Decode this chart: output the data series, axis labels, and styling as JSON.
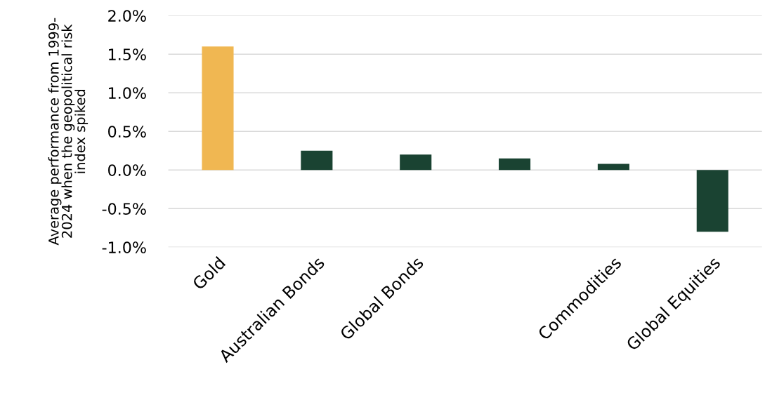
{
  "chart_data": {
    "type": "bar",
    "ylabel": "Average performance from 1999-\n2024 when the geopolitical risk\nindex spiked",
    "categories": [
      "Gold",
      "Australian Bonds",
      "Global Bonds",
      null,
      "Commodities",
      "Global Equities"
    ],
    "values": [
      1.6,
      0.25,
      0.2,
      0.15,
      0.08,
      -0.8
    ],
    "colors": [
      "#f0b752",
      "#1a4332",
      "#1a4332",
      "#1a4332",
      "#1a4332",
      "#1a4332"
    ],
    "ylim": [
      -1.0,
      2.0
    ],
    "yticks": [
      {
        "value": -1.0,
        "label": "-1.0%"
      },
      {
        "value": -0.5,
        "label": "-0.5%"
      },
      {
        "value": 0.0,
        "label": "0.0%"
      },
      {
        "value": 0.5,
        "label": "0.5%"
      },
      {
        "value": 1.0,
        "label": "1.0%"
      },
      {
        "value": 1.5,
        "label": "1.5%"
      },
      {
        "value": 2.0,
        "label": "2.0%"
      }
    ],
    "grid": "y",
    "legend": false
  }
}
